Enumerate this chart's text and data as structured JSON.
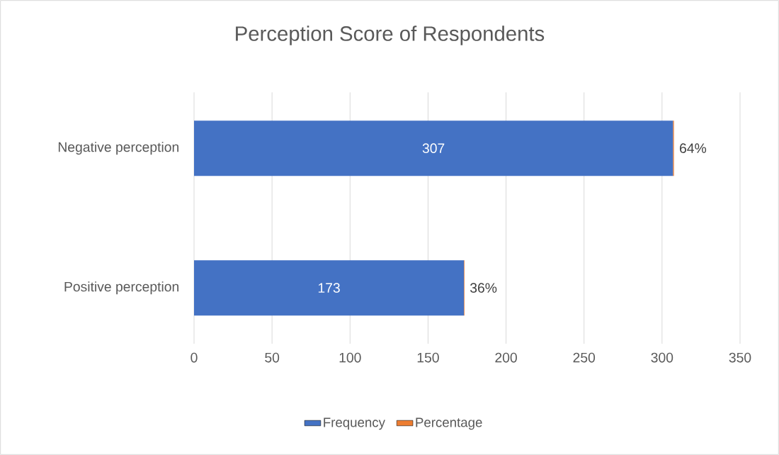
{
  "chart_data": {
    "type": "bar",
    "orientation": "horizontal",
    "stacked": true,
    "title": "Perception Score of Respondents",
    "categories": [
      "Negative perception",
      "Positive perception"
    ],
    "series": [
      {
        "name": "Frequency",
        "color": "#4472c4",
        "values": [
          307,
          173
        ],
        "value_labels": [
          "307",
          "173"
        ]
      },
      {
        "name": "Percentage",
        "color": "#ed7d31",
        "values": [
          0.64,
          0.36
        ],
        "value_labels": [
          "64%",
          "36%"
        ]
      }
    ],
    "xlim": [
      0,
      350
    ],
    "xticks": [
      0,
      50,
      100,
      150,
      200,
      250,
      300,
      350
    ],
    "grid": "x",
    "legend": "bottom"
  }
}
